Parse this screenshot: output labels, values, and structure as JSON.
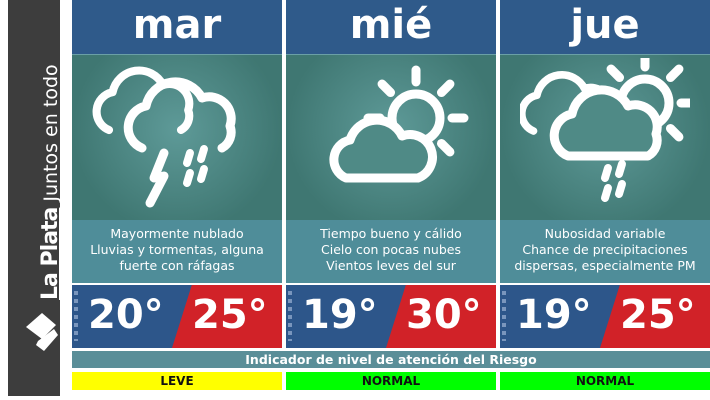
{
  "brand": {
    "name": "La Plata",
    "slogan": "Juntos en todo"
  },
  "days": [
    {
      "name": "mar",
      "icon": "thunderstorm-icon",
      "lines": [
        "Mayormente nublado",
        "Lluvias y tormentas, alguna",
        "fuerte con ráfagas"
      ],
      "min": "20°",
      "max": "25°",
      "level": "LEVE",
      "level_color": "#ffff00"
    },
    {
      "name": "mié",
      "icon": "partly-sunny-icon",
      "lines": [
        "Tiempo bueno y cálido",
        "Cielo con pocas nubes",
        "Vientos leves del sur"
      ],
      "min": "19°",
      "max": "30°",
      "level": "NORMAL",
      "level_color": "#00ff00"
    },
    {
      "name": "jue",
      "icon": "sun-cloud-rain-icon",
      "lines": [
        "Nubosidad variable",
        "Chance de precipitaciones",
        "dispersas, especialmente PM"
      ],
      "min": "19°",
      "max": "25°",
      "level": "NORMAL",
      "level_color": "#00ff00"
    }
  ],
  "indicator_title": "Indicador de nivel de atención del Riesgo"
}
